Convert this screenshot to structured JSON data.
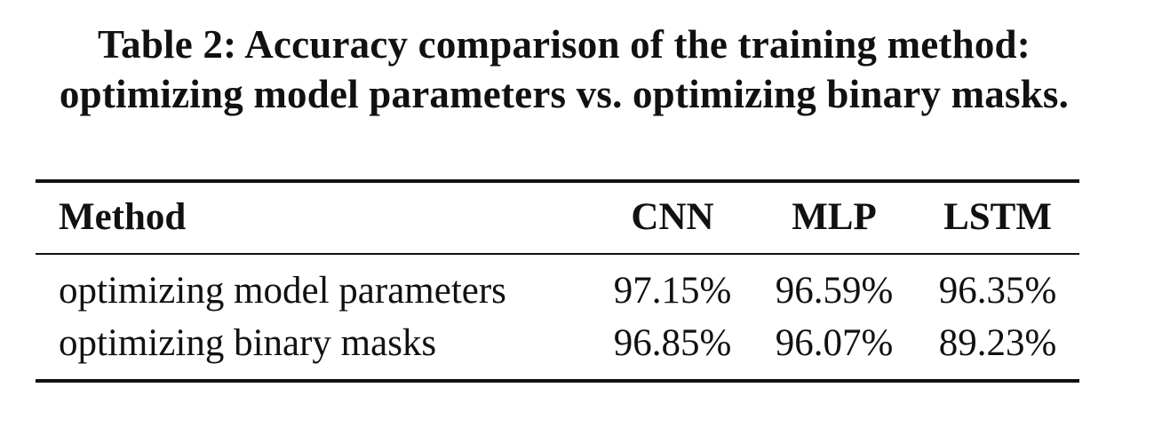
{
  "caption": {
    "line1": "Table 2: Accuracy comparison of the training method:",
    "line2": "optimizing model parameters vs. optimizing binary masks."
  },
  "table": {
    "headers": [
      "Method",
      "CNN",
      "MLP",
      "LSTM"
    ],
    "rows": [
      {
        "method": "optimizing model parameters",
        "cnn": "97.15%",
        "mlp": "96.59%",
        "lstm": "96.35%"
      },
      {
        "method": "optimizing binary masks",
        "cnn": "96.85%",
        "mlp": "96.07%",
        "lstm": "89.23%"
      }
    ]
  }
}
